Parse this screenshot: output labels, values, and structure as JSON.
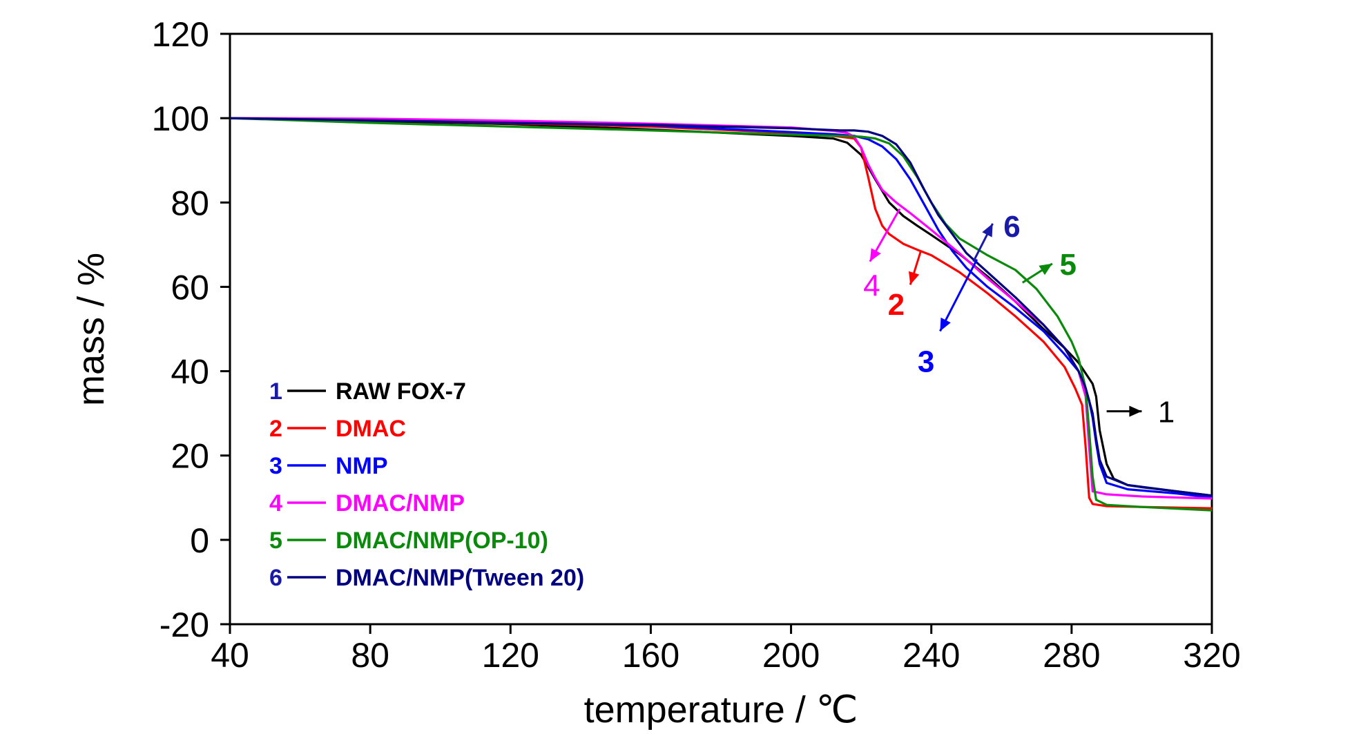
{
  "chart_data": {
    "type": "line",
    "title": "",
    "xlabel": "temperature / ℃",
    "ylabel": "mass / %",
    "xlim": [
      40,
      320
    ],
    "ylim": [
      -20,
      120
    ],
    "xticks": [
      40,
      80,
      120,
      160,
      200,
      240,
      280,
      320
    ],
    "yticks": [
      -20,
      0,
      20,
      40,
      60,
      80,
      100,
      120
    ],
    "grid": false,
    "legend_position": "bottom-left",
    "series": [
      {
        "number": "1",
        "name": "RAW FOX-7",
        "color": "#000000",
        "number_color": "#1a1aa8",
        "x": [
          40,
          80,
          120,
          160,
          200,
          212,
          216,
          220,
          224,
          228,
          232,
          236,
          240,
          248,
          256,
          264,
          272,
          278,
          282,
          286,
          287,
          288,
          290,
          292,
          296,
          300,
          310,
          320
        ],
        "y": [
          100,
          99.3,
          98.6,
          97.3,
          95.8,
          95.2,
          94.2,
          91.3,
          85.5,
          80,
          76.8,
          74.5,
          72.3,
          67.8,
          62.5,
          56.5,
          50,
          45.5,
          42,
          37,
          34,
          26,
          18,
          14.5,
          13,
          12.5,
          11.5,
          10.5
        ]
      },
      {
        "number": "2",
        "name": "DMAC",
        "color": "#ff0000",
        "number_color": "#ff0000",
        "x": [
          40,
          80,
          120,
          160,
          200,
          210,
          214,
          218,
          220,
          222,
          224,
          226,
          228,
          232,
          236,
          240,
          248,
          256,
          264,
          272,
          278,
          281,
          283,
          284,
          285,
          286,
          290,
          300,
          320
        ],
        "y": [
          100,
          99.5,
          98.8,
          98,
          96.5,
          96,
          95.6,
          95.2,
          93,
          86,
          78.5,
          74.5,
          72.5,
          70.2,
          68.8,
          67.5,
          63.5,
          58.5,
          53,
          47,
          41,
          36,
          32,
          22,
          10,
          8.5,
          8,
          7.8,
          7.5
        ]
      },
      {
        "number": "3",
        "name": "NMP",
        "color": "#0000ff",
        "number_color": "#0000ff",
        "x": [
          40,
          80,
          120,
          160,
          200,
          212,
          218,
          222,
          226,
          230,
          234,
          238,
          242,
          246,
          250,
          256,
          264,
          272,
          278,
          282,
          284,
          285,
          286,
          287,
          288,
          290,
          296,
          310,
          320
        ],
        "y": [
          100,
          99.5,
          98.9,
          98.3,
          96.7,
          96.2,
          95.8,
          95,
          93.3,
          90.3,
          85.5,
          79.5,
          73.5,
          68.5,
          64.5,
          60,
          55,
          49.5,
          44,
          40,
          36,
          33,
          29,
          23,
          18,
          13.5,
          12,
          11,
          10
        ]
      },
      {
        "number": "4",
        "name": "DMAC/NMP",
        "color": "#ff00ff",
        "number_color": "#ff00ff",
        "x": [
          40,
          80,
          120,
          160,
          200,
          212,
          216,
          218,
          220,
          222,
          224,
          226,
          230,
          234,
          240,
          248,
          256,
          264,
          272,
          278,
          282,
          284,
          285,
          286,
          290,
          300,
          320
        ],
        "y": [
          100,
          99.9,
          99.4,
          98.7,
          97.8,
          97,
          96.5,
          95.6,
          93,
          89,
          85.8,
          83,
          80,
          77.5,
          73.5,
          68,
          62,
          56.5,
          51,
          45.5,
          40,
          34,
          22,
          11.5,
          10.8,
          10.3,
          9.8
        ]
      },
      {
        "number": "5",
        "name": "DMAC/NMP(OP-10)",
        "color": "#0a8a0a",
        "number_color": "#0a8a0a",
        "x": [
          40,
          80,
          120,
          160,
          200,
          214,
          220,
          224,
          228,
          232,
          236,
          240,
          244,
          248,
          256,
          264,
          270,
          276,
          280,
          282,
          284,
          285,
          286,
          287,
          290,
          300,
          320
        ],
        "y": [
          100,
          98.9,
          98,
          97.1,
          96.1,
          95.8,
          95.6,
          95.2,
          94,
          91,
          86,
          80,
          75,
          71.5,
          67.5,
          64,
          59.5,
          53,
          47,
          43,
          36,
          26,
          15,
          9.5,
          8.3,
          7.8,
          7
        ]
      },
      {
        "number": "6",
        "name": "DMAC/NMP(Tween 20)",
        "color": "#000080",
        "number_color": "#1a1aa8",
        "x": [
          40,
          80,
          120,
          160,
          200,
          214,
          218,
          222,
          226,
          230,
          234,
          238,
          242,
          246,
          250,
          256,
          264,
          272,
          278,
          282,
          284,
          286,
          287,
          288,
          290,
          296,
          310,
          320
        ],
        "y": [
          100,
          99.5,
          98.9,
          98.4,
          97.6,
          97.1,
          97.1,
          96.8,
          95.8,
          93.8,
          89.5,
          83,
          77,
          72.5,
          68,
          63.5,
          57.5,
          51,
          45.5,
          40,
          36,
          30,
          24,
          19,
          15,
          13,
          11.5,
          10.5
        ]
      }
    ],
    "annotations": [
      {
        "text": "1",
        "series": 0,
        "color": "#000000",
        "bold": false,
        "label_x": 307,
        "label_y": 30.5,
        "arrow_from": [
          290,
          30.5
        ],
        "arrow_to": [
          300,
          30.5
        ]
      },
      {
        "text": "2",
        "series": 1,
        "color": "#ff0000",
        "bold": true,
        "label_x": 230,
        "label_y": 56,
        "arrow_from": [
          237,
          68.5
        ],
        "arrow_to": [
          234,
          60.5
        ]
      },
      {
        "text": "3",
        "series": 2,
        "color": "#0000ff",
        "bold": true,
        "label_x": 238.5,
        "label_y": 42.5,
        "arrow_from": [
          253,
          66.5
        ],
        "arrow_to": [
          242.5,
          49.5
        ]
      },
      {
        "text": "4",
        "series": 3,
        "color": "#ff00ff",
        "bold": false,
        "label_x": 223,
        "label_y": 60.5,
        "arrow_from": [
          231,
          78.5
        ],
        "arrow_to": [
          222.5,
          66
        ]
      },
      {
        "text": "5",
        "series": 4,
        "color": "#0a8a0a",
        "bold": true,
        "label_x": 279,
        "label_y": 65.5,
        "arrow_from": [
          266,
          61
        ],
        "arrow_to": [
          274.5,
          65.5
        ]
      },
      {
        "text": "6",
        "series": 5,
        "color": "#1a1aa8",
        "bold": true,
        "label_x": 263,
        "label_y": 74.5,
        "arrow_from": [
          252,
          66
        ],
        "arrow_to": [
          257.5,
          75
        ]
      }
    ]
  }
}
